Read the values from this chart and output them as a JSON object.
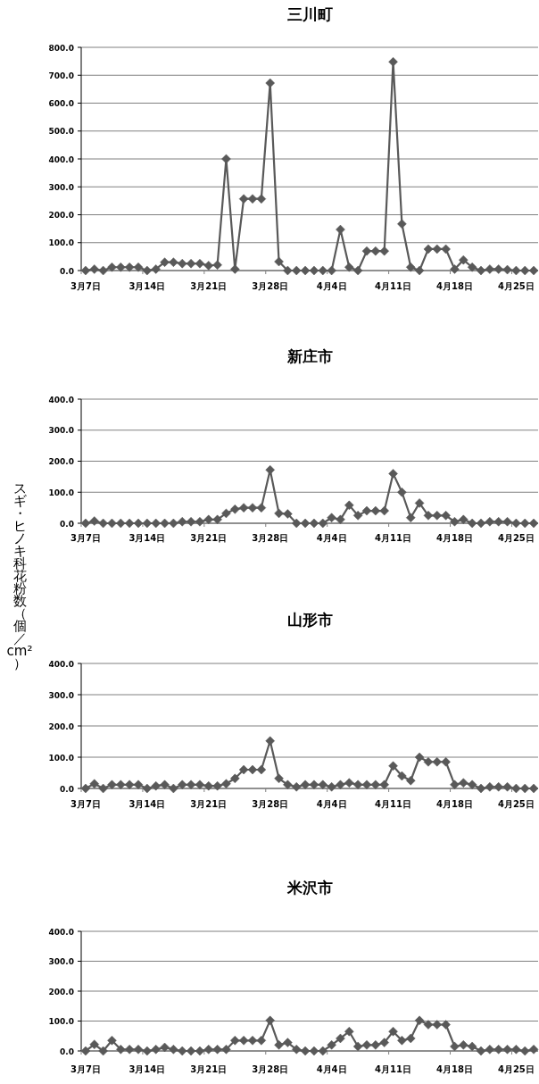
{
  "chart_data": [
    {
      "type": "line",
      "title": "三川町",
      "categories": [
        "3月7日",
        null,
        null,
        null,
        null,
        null,
        null,
        "3月14日",
        null,
        null,
        null,
        null,
        null,
        null,
        "3月21日",
        null,
        null,
        null,
        null,
        null,
        null,
        "3月28日",
        null,
        null,
        null,
        null,
        null,
        null,
        "4月4日",
        null,
        null,
        null,
        null,
        null,
        null,
        "4月11日",
        null,
        null,
        null,
        null,
        null,
        null,
        "4月18日",
        null,
        null,
        null,
        null,
        null,
        null,
        "4月25日",
        null,
        null
      ],
      "series": [
        {
          "color": "#595959",
          "values": [
            0,
            5,
            0,
            12,
            12,
            12,
            12,
            0,
            5,
            30,
            30,
            25,
            25,
            25,
            18,
            20,
            400,
            5,
            257,
            257,
            257,
            672,
            32,
            0,
            0,
            0,
            0,
            0,
            0,
            147,
            12,
            0,
            70,
            70,
            70,
            748,
            167,
            12,
            0,
            77,
            77,
            77,
            5,
            38,
            12,
            0,
            5,
            5,
            3,
            0,
            0,
            0
          ]
        }
      ],
      "ylim": [
        0,
        800
      ],
      "yticks": [
        {
          "value": 0,
          "label": "0.0"
        },
        {
          "value": 100,
          "label": "100.0"
        },
        {
          "value": 200,
          "label": "200.0"
        },
        {
          "value": 300,
          "label": "300.0"
        },
        {
          "value": 400,
          "label": "400.0"
        },
        {
          "value": 500,
          "label": "500.0"
        },
        {
          "value": 600,
          "label": "600.0"
        },
        {
          "value": 700,
          "label": "700.0"
        },
        {
          "value": 800,
          "label": "800.0"
        }
      ],
      "grid": "y",
      "marker": "diamond",
      "line_style": "solid"
    },
    {
      "type": "line",
      "title": "新庄市",
      "ylabel": "スギ・ヒノキ科花粉数（個／cm²）",
      "categories": [
        "3月7日",
        null,
        null,
        null,
        null,
        null,
        null,
        "3月14日",
        null,
        null,
        null,
        null,
        null,
        null,
        "3月21日",
        null,
        null,
        null,
        null,
        null,
        null,
        "3月28日",
        null,
        null,
        null,
        null,
        null,
        null,
        "4月4日",
        null,
        null,
        null,
        null,
        null,
        null,
        "4月11日",
        null,
        null,
        null,
        null,
        null,
        null,
        "4月18日",
        null,
        null,
        null,
        null,
        null,
        null,
        "4月25日",
        null,
        null
      ],
      "series": [
        {
          "color": "#595959",
          "values": [
            0,
            7,
            0,
            0,
            0,
            0,
            0,
            0,
            0,
            0,
            0,
            5,
            5,
            5,
            12,
            12,
            32,
            45,
            50,
            50,
            50,
            172,
            32,
            30,
            0,
            0,
            0,
            0,
            18,
            12,
            58,
            25,
            40,
            40,
            40,
            160,
            100,
            18,
            65,
            25,
            25,
            25,
            5,
            12,
            0,
            0,
            5,
            5,
            5,
            0,
            0,
            0
          ]
        }
      ],
      "ylim": [
        0,
        400
      ],
      "yticks": [
        {
          "value": 0,
          "label": "0.0"
        },
        {
          "value": 100,
          "label": "100.0"
        },
        {
          "value": 200,
          "label": "200.0"
        },
        {
          "value": 300,
          "label": "300.0"
        },
        {
          "value": 400,
          "label": "400.0"
        }
      ],
      "grid": "y",
      "marker": "diamond",
      "line_style": "solid"
    },
    {
      "type": "line",
      "title": "山形市",
      "categories": [
        "3月7日",
        null,
        null,
        null,
        null,
        null,
        null,
        "3月14日",
        null,
        null,
        null,
        null,
        null,
        null,
        "3月21日",
        null,
        null,
        null,
        null,
        null,
        null,
        "3月28日",
        null,
        null,
        null,
        null,
        null,
        null,
        "4月4日",
        null,
        null,
        null,
        null,
        null,
        null,
        "4月11日",
        null,
        null,
        null,
        null,
        null,
        null,
        "4月18日",
        null,
        null,
        null,
        null,
        null,
        null,
        "4月25日",
        null,
        null
      ],
      "series": [
        {
          "color": "#595959",
          "values": [
            0,
            15,
            0,
            12,
            12,
            12,
            12,
            0,
            8,
            12,
            0,
            12,
            12,
            12,
            8,
            8,
            15,
            32,
            60,
            60,
            60,
            152,
            32,
            12,
            5,
            12,
            12,
            12,
            5,
            12,
            18,
            12,
            12,
            12,
            12,
            72,
            40,
            25,
            100,
            85,
            85,
            85,
            12,
            18,
            12,
            0,
            5,
            5,
            5,
            0,
            0,
            0
          ]
        }
      ],
      "ylim": [
        0,
        400
      ],
      "yticks": [
        {
          "value": 0,
          "label": "0.0"
        },
        {
          "value": 100,
          "label": "100.0"
        },
        {
          "value": 200,
          "label": "200.0"
        },
        {
          "value": 300,
          "label": "300.0"
        },
        {
          "value": 400,
          "label": "400.0"
        }
      ],
      "grid": "y",
      "marker": "diamond",
      "line_style": "solid"
    },
    {
      "type": "line",
      "title": "米沢市",
      "categories": [
        "3月7日",
        null,
        null,
        null,
        null,
        null,
        null,
        "3月14日",
        null,
        null,
        null,
        null,
        null,
        null,
        "3月21日",
        null,
        null,
        null,
        null,
        null,
        null,
        "3月28日",
        null,
        null,
        null,
        null,
        null,
        null,
        "4月4日",
        null,
        null,
        null,
        null,
        null,
        null,
        "4月11日",
        null,
        null,
        null,
        null,
        null,
        null,
        "4月18日",
        null,
        null,
        null,
        null,
        null,
        null,
        "4月25日",
        null,
        null
      ],
      "series": [
        {
          "color": "#595959",
          "values": [
            0,
            22,
            0,
            35,
            5,
            5,
            5,
            0,
            5,
            12,
            5,
            0,
            0,
            0,
            5,
            5,
            5,
            35,
            35,
            35,
            35,
            102,
            20,
            28,
            5,
            0,
            0,
            0,
            20,
            42,
            65,
            15,
            20,
            20,
            28,
            65,
            35,
            42,
            102,
            88,
            88,
            88,
            15,
            20,
            15,
            0,
            5,
            5,
            5,
            5,
            0,
            5
          ]
        }
      ],
      "ylim": [
        0,
        400
      ],
      "yticks": [
        {
          "value": 0,
          "label": "0.0"
        },
        {
          "value": 100,
          "label": "100.0"
        },
        {
          "value": 200,
          "label": "200.0"
        },
        {
          "value": 300,
          "label": "300.0"
        },
        {
          "value": 400,
          "label": "400.0"
        }
      ],
      "grid": "y",
      "marker": "diamond",
      "line_style": "solid"
    }
  ]
}
